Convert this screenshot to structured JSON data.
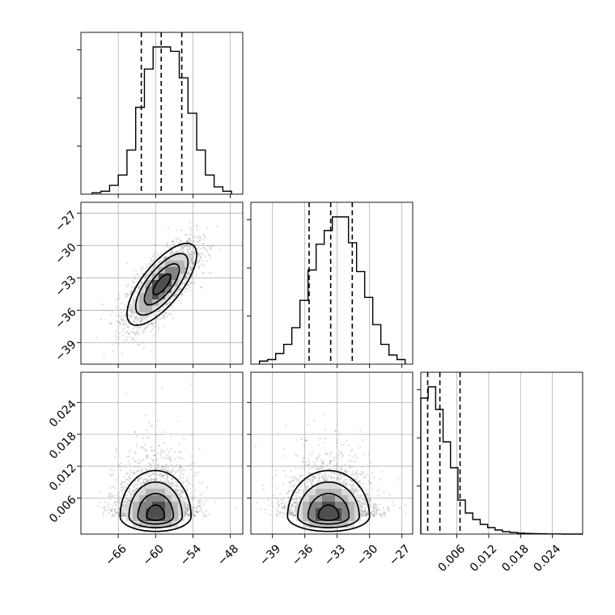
{
  "chart_data": {
    "type": "corner",
    "title": "",
    "parameters": [
      {
        "id": "p0",
        "range": [
          -72,
          -46
        ],
        "ticks": [
          -66,
          -60,
          -54,
          -48
        ],
        "tick_labels": [
          "−66",
          "−60",
          "−54",
          "−48"
        ],
        "quantiles": [
          -62.3,
          -59.1,
          -55.8
        ],
        "histogram": {
          "bin_edges": [
            -70.2,
            -68.8,
            -67.4,
            -66.0,
            -64.6,
            -63.2,
            -61.8,
            -60.4,
            -59.0,
            -57.6,
            -56.2,
            -54.8,
            -53.4,
            -52.0,
            -50.6,
            -49.2,
            -47.8
          ],
          "counts": [
            0.01,
            0.02,
            0.06,
            0.13,
            0.3,
            0.59,
            0.85,
            1.0,
            1.0,
            0.97,
            0.79,
            0.55,
            0.3,
            0.13,
            0.05,
            0.02
          ]
        }
      },
      {
        "id": "p1",
        "range": [
          -41,
          -26
        ],
        "ticks": [
          -39,
          -36,
          -33,
          -30,
          -27
        ],
        "tick_labels": [
          "−39",
          "−36",
          "−33",
          "−30",
          "−27"
        ],
        "quantiles": [
          -35.6,
          -33.6,
          -31.6
        ],
        "histogram": {
          "bin_edges": [
            -40.2,
            -39.45,
            -38.7,
            -37.95,
            -37.2,
            -36.45,
            -35.7,
            -34.95,
            -34.2,
            -33.45,
            -32.7,
            -31.95,
            -31.2,
            -30.45,
            -29.7,
            -28.95,
            -28.2,
            -27.45,
            -26.7
          ],
          "counts": [
            0.02,
            0.03,
            0.07,
            0.13,
            0.24,
            0.42,
            0.62,
            0.79,
            0.88,
            0.97,
            0.97,
            0.8,
            0.61,
            0.44,
            0.26,
            0.13,
            0.06,
            0.03
          ]
        }
      },
      {
        "id": "p2",
        "range": [
          -0.0008,
          0.0297
        ],
        "ticks": [
          0.006,
          0.012,
          0.018,
          0.024
        ],
        "tick_labels": [
          "0.006",
          "0.012",
          "0.018",
          "0.024"
        ],
        "quantiles": [
          0.0005,
          0.0028,
          0.0066
        ],
        "histogram": {
          "bin_edges": [
            -0.0008,
            0.0006,
            0.002,
            0.0034,
            0.0048,
            0.0062,
            0.0076,
            0.009,
            0.0104,
            0.0118,
            0.0132,
            0.0146,
            0.016,
            0.0174,
            0.0188,
            0.0202,
            0.0216,
            0.023,
            0.0244,
            0.0258,
            0.0272,
            0.0297
          ],
          "counts": [
            0.84,
            0.91,
            0.77,
            0.57,
            0.41,
            0.21,
            0.13,
            0.09,
            0.06,
            0.04,
            0.025,
            0.015,
            0.01,
            0.006,
            0.004,
            0.003,
            0.002,
            0.001,
            0.001,
            0.0,
            0.0
          ]
        }
      }
    ],
    "panels_2d": [
      {
        "x": "p0",
        "y": "p1",
        "center": [
          -59.0,
          -33.6
        ],
        "sigma": [
          2.8,
          1.9
        ],
        "rho": 0.72,
        "contour_levels_sigma": [
          0.5,
          1.0,
          1.5,
          2.0
        ]
      },
      {
        "x": "p0",
        "y": "p2",
        "center": [
          -60.0,
          0.0025
        ],
        "sigma": [
          3.0,
          0.0028
        ],
        "rho": 0.0,
        "skewed_y": true,
        "contour_levels_sigma": [
          0.5,
          1.0,
          1.5,
          2.0
        ]
      },
      {
        "x": "p1",
        "y": "p2",
        "center": [
          -33.8,
          0.0025
        ],
        "sigma": [
          2.0,
          0.0028
        ],
        "rho": 0.0,
        "skewed_y": true,
        "contour_levels_sigma": [
          0.5,
          1.0,
          1.5,
          2.0
        ]
      }
    ],
    "grid": true
  }
}
